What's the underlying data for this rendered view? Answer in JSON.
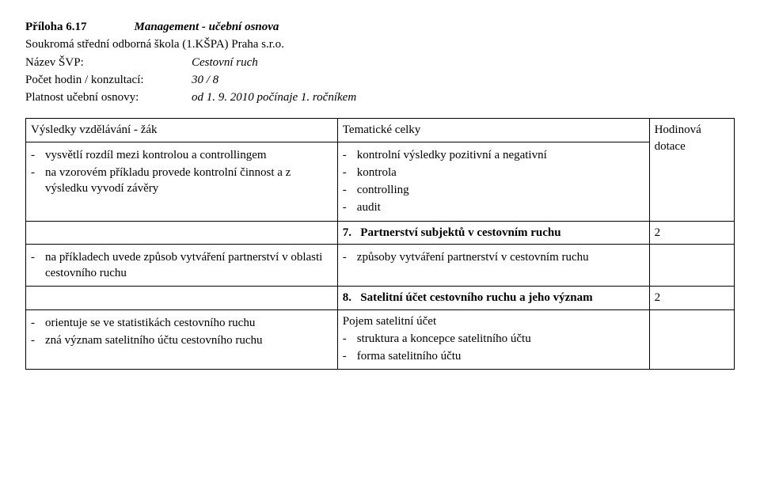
{
  "header": {
    "attachment_label": "Příloha 6.17",
    "title": "Management - učební osnova",
    "school": "Soukromá střední odborná škola (1.KŠPA) Praha s.r.o.",
    "svp_label": "Název ŠVP:",
    "svp_value": "Cestovní ruch",
    "hours_label": "Počet hodin / konzultací:",
    "hours_value": "30 / 8",
    "validity_label": "Platnost učební osnovy:",
    "validity_value": "od 1. 9. 2010 počínaje 1. ročníkem"
  },
  "table": {
    "head": {
      "c1": "Výsledky vzdělávání - žák",
      "c2": "Tematické celky",
      "c3a": "Hodinová",
      "c3b": "dotace"
    },
    "r1": {
      "left": {
        "i0": "vysvětlí rozdíl mezi kontrolou a controllingem",
        "i1": "na vzorovém příkladu provede kontrolní činnost a z výsledku vyvodí závěry"
      },
      "right": {
        "i0": "kontrolní výsledky pozitivní a negativní",
        "i1": "kontrola",
        "i2": "controlling",
        "i3": "audit"
      }
    },
    "r2": {
      "num": "7.",
      "title": "Partnerství subjektů v cestovním ruchu",
      "hours": "2"
    },
    "r3": {
      "left": {
        "i0": "na příkladech uvede způsob vytváření partnerství v oblasti cestovního ruchu"
      },
      "right": {
        "i0": "způsoby vytváření partnerství v cestovním ruchu"
      }
    },
    "r4": {
      "num": "8.",
      "title": "Satelitní účet cestovního ruchu a jeho význam",
      "hours": "2"
    },
    "r5": {
      "left": {
        "i0": "orientuje se ve statistikách cestovního ruchu",
        "i1": "zná význam satelitního účtu cestovního ruchu"
      },
      "right": {
        "lead": "Pojem satelitní účet",
        "i0": "struktura a koncepce satelitního účtu",
        "i1": "forma satelitního účtu"
      }
    }
  }
}
